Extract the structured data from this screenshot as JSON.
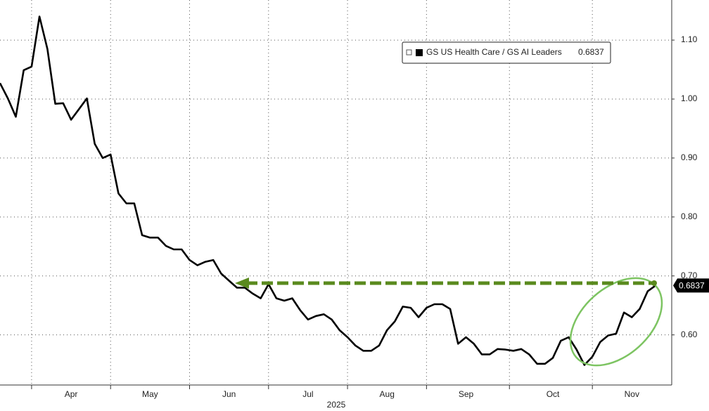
{
  "chart_data": {
    "type": "line",
    "categories": [
      null,
      null,
      null,
      null,
      null,
      null,
      null,
      null,
      null,
      "Apr",
      null,
      null,
      null,
      null,
      null,
      null,
      null,
      null,
      null,
      "May",
      null,
      null,
      null,
      null,
      null,
      null,
      null,
      null,
      null,
      "Jun",
      null,
      null,
      null,
      null,
      null,
      null,
      null,
      null,
      null,
      "Jul",
      null,
      null,
      null,
      null,
      null,
      null,
      null,
      null,
      null,
      "Aug",
      null,
      null,
      null,
      null,
      null,
      null,
      null,
      null,
      null,
      "Sep",
      null,
      null,
      null,
      null,
      null,
      null,
      null,
      null,
      null,
      null,
      "Oct",
      null,
      null,
      null,
      null,
      null,
      null,
      null,
      null,
      null,
      "Nov",
      null,
      null,
      null
    ],
    "x_axis_label": "2025",
    "series": [
      {
        "name": "GS US Health Care / GS AI Leaders",
        "color": "#000000",
        "values": [
          1.027,
          1.001,
          0.97,
          1.049,
          1.055,
          1.14,
          1.085,
          0.992,
          0.993,
          0.965,
          0.983,
          1.001,
          0.924,
          0.9,
          0.906,
          0.84,
          0.823,
          0.823,
          0.769,
          0.765,
          0.765,
          0.751,
          0.745,
          0.745,
          0.727,
          0.718,
          0.724,
          0.727,
          0.704,
          0.692,
          0.68,
          0.68,
          0.67,
          0.662,
          0.686,
          0.662,
          0.658,
          0.662,
          0.642,
          0.626,
          0.632,
          0.635,
          0.626,
          0.608,
          0.596,
          0.582,
          0.573,
          0.573,
          0.582,
          0.608,
          0.623,
          0.648,
          0.646,
          0.63,
          0.646,
          0.652,
          0.652,
          0.644,
          0.585,
          0.596,
          0.585,
          0.567,
          0.567,
          0.576,
          0.575,
          0.573,
          0.576,
          0.567,
          0.551,
          0.551,
          0.561,
          0.59,
          0.596,
          0.575,
          0.549,
          0.563,
          0.588,
          0.599,
          0.602,
          0.638,
          0.63,
          0.644,
          0.674,
          0.6837
        ]
      }
    ],
    "ylim": [
      0.515,
      1.168
    ],
    "yticks": [
      {
        "value": 0.6,
        "label": "0.60"
      },
      {
        "value": 0.7,
        "label": "0.70"
      },
      {
        "value": 0.8,
        "label": "0.80"
      },
      {
        "value": 0.9,
        "label": "0.90"
      },
      {
        "value": 1.0,
        "label": "1.00"
      },
      {
        "value": 1.1,
        "label": "1.10"
      }
    ],
    "grid": true,
    "legend": "top-right"
  }
}
